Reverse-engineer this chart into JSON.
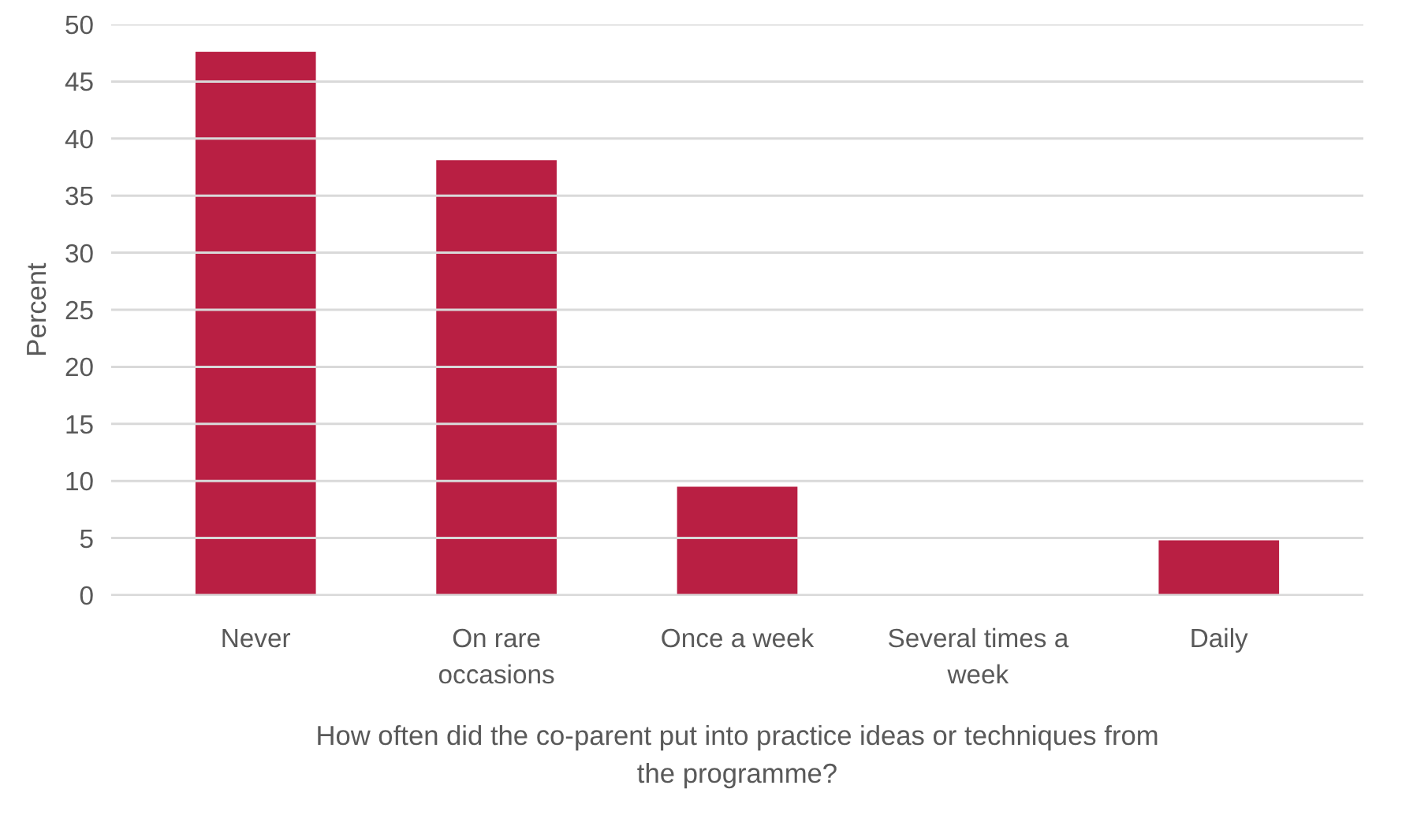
{
  "chart_data": {
    "type": "bar",
    "categories": [
      "Never",
      "On rare occasions",
      "Once a week",
      "Several times a week",
      "Daily"
    ],
    "values": [
      47.6,
      38.1,
      9.5,
      0,
      4.8
    ],
    "color": "#b91f43",
    "xlabel": "How often did the co-parent put into practice ideas or techniques from the programme?",
    "ylabel": "Percent",
    "ylim": [
      0,
      50
    ],
    "yticks": [
      0,
      5,
      10,
      15,
      20,
      25,
      30,
      35,
      40,
      45,
      50
    ],
    "grid": "y"
  }
}
